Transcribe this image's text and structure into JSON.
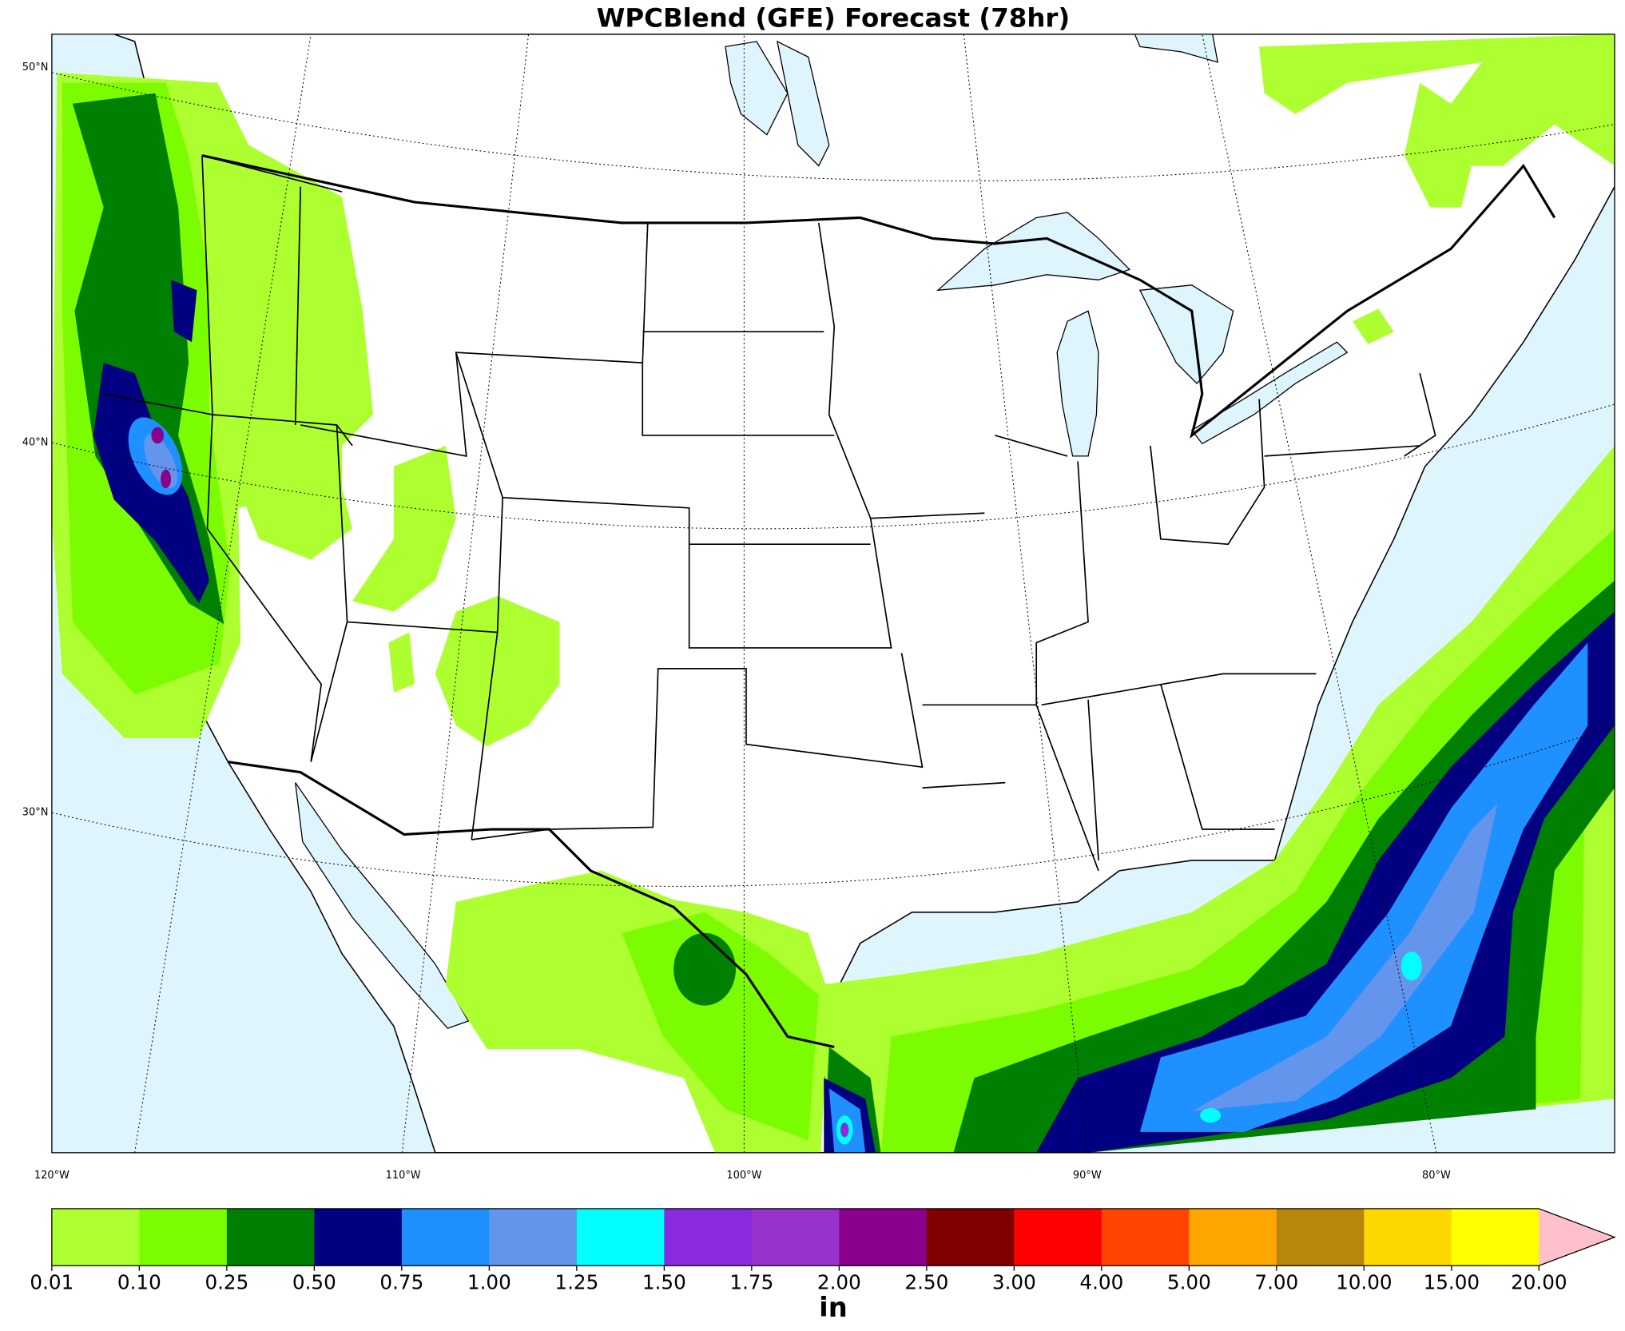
{
  "title": "WPCBlend (GFE) Forecast (78hr)",
  "lat_labels": [
    "50°N",
    "40°N",
    "30°N"
  ],
  "lon_labels": [
    "120°W",
    "110°W",
    "100°W",
    "90°W",
    "80°W"
  ],
  "colorbar": {
    "ticks": [
      "0.01",
      "0.10",
      "0.25",
      "0.50",
      "0.75",
      "1.00",
      "1.25",
      "1.50",
      "1.75",
      "2.00",
      "2.50",
      "3.00",
      "4.00",
      "5.00",
      "7.00",
      "10.00",
      "15.00",
      "20.00"
    ],
    "colors": [
      "#adff2f",
      "#7cfc00",
      "#008000",
      "#000080",
      "#1e90ff",
      "#6495ed",
      "#00ffff",
      "#8a2be2",
      "#9932cc",
      "#8b008b",
      "#800000",
      "#ff0000",
      "#ff4500",
      "#ffa500",
      "#b8860b",
      "#ffd700",
      "#ffff00"
    ],
    "extend_color": "#ffc0cb",
    "unit": "in"
  }
}
